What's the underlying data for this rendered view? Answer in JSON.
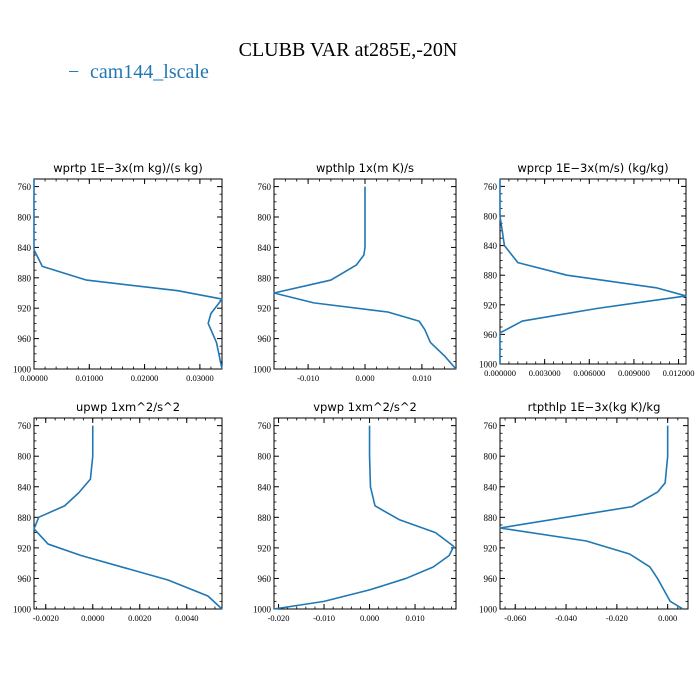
{
  "figure": {
    "title": "CLUBB VAR at285E,-20N",
    "legend": [
      {
        "label": "cam144_lscale",
        "color": "#1f77b4"
      }
    ]
  },
  "chart_data": [
    {
      "type": "line",
      "title": "wprtp   1E−3x(m kg)/(s kg)",
      "xlim": [
        0.0,
        0.034
      ],
      "ylim": [
        1000,
        750
      ],
      "xticks": [
        0.0,
        0.01,
        0.02,
        0.03
      ],
      "xtick_labels": [
        "0.00000",
        "0.01000",
        "0.02000",
        "0.03000"
      ],
      "yticks": [
        760,
        800,
        840,
        880,
        920,
        960,
        1000
      ],
      "series": [
        {
          "color": "#1f77b4",
          "x": [
            0.0,
            0.0,
            0.0,
            0.0,
            0.0015,
            0.0095,
            0.026,
            0.034,
            0.032,
            0.0315,
            0.033,
            0.034
          ],
          "y": [
            750,
            800,
            830,
            843,
            865,
            883,
            897,
            908,
            927,
            940,
            965,
            1000
          ]
        }
      ]
    },
    {
      "type": "line",
      "title": "wpthlp   1x(m K)/s",
      "xlim": [
        -0.016,
        0.016
      ],
      "ylim": [
        1000,
        750
      ],
      "xticks": [
        -0.01,
        0.0,
        0.01
      ],
      "xtick_labels": [
        "-0.010",
        "0.000",
        "0.010"
      ],
      "yticks": [
        760,
        800,
        840,
        880,
        920,
        960,
        1000
      ],
      "series": [
        {
          "color": "#1f77b4",
          "x": [
            0.0,
            0.0,
            0.0,
            -0.0002,
            -0.0015,
            -0.006,
            -0.016,
            -0.009,
            0.004,
            0.0095,
            0.0105,
            0.0115,
            0.014,
            0.016
          ],
          "y": [
            760,
            800,
            840,
            850,
            863,
            883,
            900,
            913,
            925,
            937,
            948,
            965,
            983,
            1000
          ]
        }
      ]
    },
    {
      "type": "line",
      "title": "wprcp   1E−3x(m/s) (kg/kg)",
      "xlim": [
        0.0,
        0.0125
      ],
      "ylim": [
        1000,
        750
      ],
      "xticks": [
        0.0,
        0.003,
        0.006,
        0.009,
        0.012
      ],
      "xtick_labels": [
        "0.000000",
        "0.003000",
        "0.006000",
        "0.009000",
        "0.012000"
      ],
      "yticks": [
        760,
        800,
        840,
        880,
        920,
        960,
        1000
      ],
      "series": [
        {
          "color": "#1f77b4",
          "x": [
            0.0,
            0.0,
            0.0003,
            0.0012,
            0.0045,
            0.0105,
            0.0125,
            0.0065,
            0.0015,
            0.0,
            0.0
          ],
          "y": [
            750,
            800,
            840,
            863,
            880,
            897,
            908,
            925,
            942,
            958,
            1000
          ]
        }
      ]
    },
    {
      "type": "line",
      "title": "upwp   1xm^2/s^2",
      "xlim": [
        -0.0025,
        0.0055
      ],
      "ylim": [
        1000,
        750
      ],
      "xticks": [
        -0.002,
        0.0,
        0.002,
        0.004
      ],
      "xtick_labels": [
        "-0.0020",
        "0.0000",
        "0.0020",
        "0.0040"
      ],
      "yticks": [
        760,
        800,
        840,
        880,
        920,
        960,
        1000
      ],
      "series": [
        {
          "color": "#1f77b4",
          "x": [
            0.0,
            0.0,
            -0.0001,
            -0.0006,
            -0.0012,
            -0.0023,
            -0.0025,
            -0.0019,
            -0.0005,
            0.0032,
            0.0049,
            0.0055
          ],
          "y": [
            760,
            800,
            830,
            848,
            865,
            880,
            895,
            915,
            930,
            962,
            983,
            1000
          ]
        }
      ]
    },
    {
      "type": "line",
      "title": "vpwp   1xm^2/s^2",
      "xlim": [
        -0.021,
        0.019
      ],
      "ylim": [
        1000,
        750
      ],
      "xticks": [
        -0.02,
        -0.01,
        0.0,
        0.01
      ],
      "xtick_labels": [
        "-0.020",
        "-0.010",
        "0.000",
        "0.010"
      ],
      "yticks": [
        760,
        800,
        840,
        880,
        920,
        960,
        1000
      ],
      "series": [
        {
          "color": "#1f77b4",
          "x": [
            0.0,
            0.0,
            0.0002,
            0.0012,
            0.0065,
            0.0145,
            0.0185,
            0.0175,
            0.014,
            0.008,
            0.0,
            -0.01,
            -0.021
          ],
          "y": [
            760,
            800,
            840,
            865,
            883,
            900,
            918,
            930,
            945,
            960,
            975,
            990,
            1000
          ]
        }
      ]
    },
    {
      "type": "line",
      "title": "rtpthlp   1E−3x(kg K)/kg",
      "xlim": [
        -0.066,
        0.008
      ],
      "ylim": [
        1000,
        750
      ],
      "xticks": [
        -0.06,
        -0.04,
        -0.02,
        0.0
      ],
      "xtick_labels": [
        "-0.060",
        "-0.040",
        "-0.020",
        "0.000"
      ],
      "yticks": [
        760,
        800,
        840,
        880,
        920,
        960,
        1000
      ],
      "series": [
        {
          "color": "#1f77b4",
          "x": [
            0.0,
            0.0,
            -0.001,
            -0.004,
            -0.014,
            -0.066,
            -0.032,
            -0.015,
            -0.007,
            -0.004,
            -0.002,
            0.001,
            0.006
          ],
          "y": [
            760,
            800,
            835,
            847,
            866,
            894,
            911,
            928,
            945,
            960,
            972,
            990,
            1000
          ]
        }
      ]
    }
  ]
}
